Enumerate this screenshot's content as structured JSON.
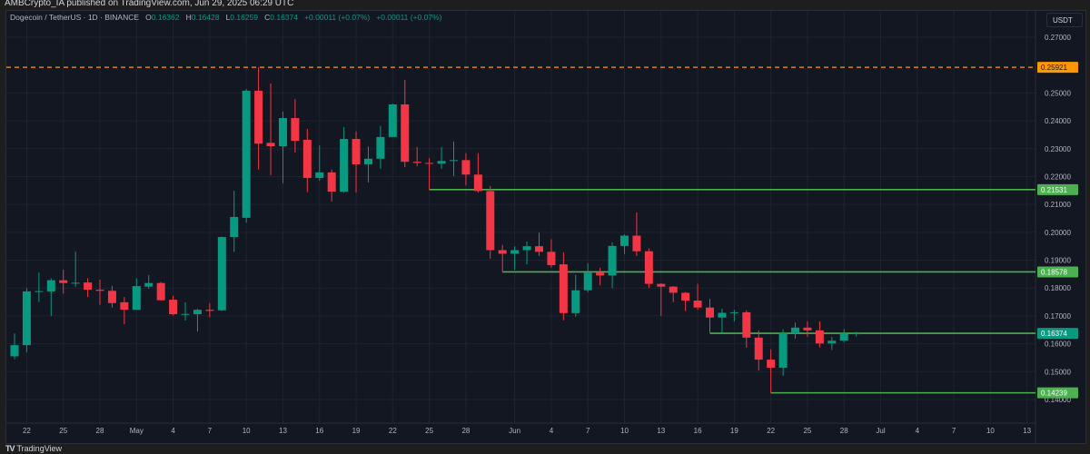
{
  "publication": {
    "text": "AMBCrypto_IA published on TradingView.com, Jun 29, 2025 06:29 UTC"
  },
  "legend": {
    "symbol": "Dogecoin / TetherUS · 1D · BINANCE",
    "open_label": "O",
    "open": "0.16362",
    "high_label": "H",
    "high": "0.16428",
    "low_label": "L",
    "low": "0.16259",
    "close_label": "C",
    "close": "0.16374",
    "change1": "+0.00011 (+0.07%)",
    "change2": "+0.00011 (+0.07%)"
  },
  "currency_button": "USDT",
  "footer": {
    "brand": "TradingView",
    "logo_icon": "tradingview-logo-icon"
  },
  "colors": {
    "up": "#089981",
    "down": "#f23645",
    "level": "#4caf50",
    "alert": "#ff9800",
    "current": "#089981"
  },
  "chart_data": {
    "type": "candlestick",
    "title": "Dogecoin / TetherUS · 1D · BINANCE",
    "ylim": [
      0.1365,
      0.2755
    ],
    "grid": true,
    "y_ticks": [
      "0.27000",
      "0.25000",
      "0.24000",
      "0.23000",
      "0.22000",
      "0.21000",
      "0.20000",
      "0.19000",
      "0.18000",
      "0.17000",
      "0.16000",
      "0.15000",
      "0.14000"
    ],
    "x_ticks": [
      {
        "date": "2025-04-22",
        "label": "22"
      },
      {
        "date": "2025-04-25",
        "label": "25"
      },
      {
        "date": "2025-04-28",
        "label": "28"
      },
      {
        "date": "2025-05-01",
        "label": "May"
      },
      {
        "date": "2025-05-04",
        "label": "4"
      },
      {
        "date": "2025-05-07",
        "label": "7"
      },
      {
        "date": "2025-05-10",
        "label": "10"
      },
      {
        "date": "2025-05-13",
        "label": "13"
      },
      {
        "date": "2025-05-16",
        "label": "16"
      },
      {
        "date": "2025-05-19",
        "label": "19"
      },
      {
        "date": "2025-05-22",
        "label": "22"
      },
      {
        "date": "2025-05-25",
        "label": "25"
      },
      {
        "date": "2025-05-28",
        "label": "28"
      },
      {
        "date": "2025-06-01",
        "label": "Jun"
      },
      {
        "date": "2025-06-04",
        "label": "4"
      },
      {
        "date": "2025-06-07",
        "label": "7"
      },
      {
        "date": "2025-06-10",
        "label": "10"
      },
      {
        "date": "2025-06-13",
        "label": "13"
      },
      {
        "date": "2025-06-16",
        "label": "16"
      },
      {
        "date": "2025-06-19",
        "label": "19"
      },
      {
        "date": "2025-06-22",
        "label": "22"
      },
      {
        "date": "2025-06-25",
        "label": "25"
      },
      {
        "date": "2025-06-28",
        "label": "28"
      },
      {
        "date": "2025-07-01",
        "label": "Jul"
      },
      {
        "date": "2025-07-04",
        "label": "4"
      },
      {
        "date": "2025-07-07",
        "label": "7"
      },
      {
        "date": "2025-07-10",
        "label": "10"
      },
      {
        "date": "2025-07-13",
        "label": "13"
      }
    ],
    "candles_fields": [
      "date",
      "open",
      "high",
      "low",
      "close"
    ],
    "candles": [
      [
        "2025-04-21",
        0.1555,
        0.1637,
        0.1545,
        0.1595
      ],
      [
        "2025-04-22",
        0.1595,
        0.18,
        0.157,
        0.1788
      ],
      [
        "2025-04-23",
        0.1786,
        0.1855,
        0.175,
        0.1789
      ],
      [
        "2025-04-24",
        0.1788,
        0.1835,
        0.17,
        0.1828
      ],
      [
        "2025-04-25",
        0.1828,
        0.1866,
        0.178,
        0.1818
      ],
      [
        "2025-04-26",
        0.1817,
        0.193,
        0.1805,
        0.1819
      ],
      [
        "2025-04-27",
        0.182,
        0.1835,
        0.1768,
        0.1794
      ],
      [
        "2025-04-28",
        0.1794,
        0.183,
        0.174,
        0.179
      ],
      [
        "2025-04-29",
        0.179,
        0.1808,
        0.173,
        0.1746
      ],
      [
        "2025-04-30",
        0.1749,
        0.1768,
        0.167,
        0.1722
      ],
      [
        "2025-05-01",
        0.1722,
        0.1835,
        0.1722,
        0.1807
      ],
      [
        "2025-05-02",
        0.1805,
        0.1847,
        0.1797,
        0.1818
      ],
      [
        "2025-05-03",
        0.1818,
        0.1822,
        0.1755,
        0.1756
      ],
      [
        "2025-05-04",
        0.1758,
        0.1772,
        0.1702,
        0.1706
      ],
      [
        "2025-05-05",
        0.1705,
        0.1749,
        0.1683,
        0.1707
      ],
      [
        "2025-05-06",
        0.1706,
        0.1725,
        0.1644,
        0.1722
      ],
      [
        "2025-05-07",
        0.1722,
        0.1746,
        0.1695,
        0.1718
      ],
      [
        "2025-05-08",
        0.172,
        0.1985,
        0.1718,
        0.1983
      ],
      [
        "2025-05-09",
        0.1983,
        0.2149,
        0.193,
        0.2055
      ],
      [
        "2025-05-10",
        0.2052,
        0.2514,
        0.2035,
        0.2508
      ],
      [
        "2025-05-11",
        0.2508,
        0.2592,
        0.2225,
        0.2318
      ],
      [
        "2025-05-12",
        0.2321,
        0.2534,
        0.2205,
        0.2309
      ],
      [
        "2025-05-13",
        0.2309,
        0.2433,
        0.2176,
        0.241
      ],
      [
        "2025-05-14",
        0.241,
        0.2478,
        0.2286,
        0.2328
      ],
      [
        "2025-05-15",
        0.2332,
        0.2371,
        0.2144,
        0.2195
      ],
      [
        "2025-05-16",
        0.2195,
        0.2312,
        0.2185,
        0.2215
      ],
      [
        "2025-05-17",
        0.2215,
        0.2225,
        0.211,
        0.2146
      ],
      [
        "2025-05-18",
        0.2146,
        0.2378,
        0.2142,
        0.2335
      ],
      [
        "2025-05-19",
        0.2335,
        0.2362,
        0.2142,
        0.2244
      ],
      [
        "2025-05-20",
        0.2244,
        0.2308,
        0.2179,
        0.2264
      ],
      [
        "2025-05-21",
        0.2264,
        0.2382,
        0.2228,
        0.2342
      ],
      [
        "2025-05-22",
        0.2342,
        0.2462,
        0.2342,
        0.2459
      ],
      [
        "2025-05-23",
        0.2459,
        0.2547,
        0.2234,
        0.2253
      ],
      [
        "2025-05-24",
        0.2253,
        0.2306,
        0.2237,
        0.2249
      ],
      [
        "2025-05-25",
        0.2249,
        0.2266,
        0.2153,
        0.2246
      ],
      [
        "2025-05-26",
        0.2246,
        0.2306,
        0.2228,
        0.2256
      ],
      [
        "2025-05-27",
        0.2257,
        0.2326,
        0.2202,
        0.2259
      ],
      [
        "2025-05-28",
        0.2259,
        0.2284,
        0.2168,
        0.2207
      ],
      [
        "2025-05-29",
        0.2207,
        0.2284,
        0.2142,
        0.2148
      ],
      [
        "2025-05-30",
        0.2148,
        0.2166,
        0.1905,
        0.1936
      ],
      [
        "2025-05-31",
        0.1936,
        0.1955,
        0.1858,
        0.1923
      ],
      [
        "2025-06-01",
        0.1923,
        0.195,
        0.1865,
        0.1936
      ],
      [
        "2025-06-02",
        0.1936,
        0.1967,
        0.1885,
        0.195
      ],
      [
        "2025-06-03",
        0.195,
        0.1999,
        0.1915,
        0.193
      ],
      [
        "2025-06-04",
        0.193,
        0.1975,
        0.1873,
        0.1882
      ],
      [
        "2025-06-05",
        0.1885,
        0.1928,
        0.1684,
        0.171
      ],
      [
        "2025-06-06",
        0.171,
        0.1847,
        0.1697,
        0.1792
      ],
      [
        "2025-06-07",
        0.1792,
        0.1889,
        0.1785,
        0.1855
      ],
      [
        "2025-06-08",
        0.1855,
        0.1873,
        0.181,
        0.1845
      ],
      [
        "2025-06-09",
        0.1845,
        0.1964,
        0.18,
        0.1951
      ],
      [
        "2025-06-10",
        0.1951,
        0.1992,
        0.1922,
        0.1988
      ],
      [
        "2025-06-11",
        0.1988,
        0.2071,
        0.1915,
        0.1932
      ],
      [
        "2025-06-12",
        0.1932,
        0.1942,
        0.18,
        0.1815
      ],
      [
        "2025-06-13",
        0.1815,
        0.1817,
        0.17,
        0.1805
      ],
      [
        "2025-06-14",
        0.1805,
        0.1807,
        0.1749,
        0.1783
      ],
      [
        "2025-06-15",
        0.1783,
        0.1786,
        0.1717,
        0.1755
      ],
      [
        "2025-06-16",
        0.1755,
        0.1815,
        0.1722,
        0.173
      ],
      [
        "2025-06-17",
        0.173,
        0.1761,
        0.164,
        0.1694
      ],
      [
        "2025-06-18",
        0.1694,
        0.1726,
        0.164,
        0.1711
      ],
      [
        "2025-06-19",
        0.1711,
        0.1722,
        0.168,
        0.1713
      ],
      [
        "2025-06-20",
        0.1713,
        0.172,
        0.1586,
        0.1622
      ],
      [
        "2025-06-21",
        0.1622,
        0.1648,
        0.1504,
        0.1543
      ],
      [
        "2025-06-22",
        0.1543,
        0.158,
        0.1424,
        0.1514
      ],
      [
        "2025-06-23",
        0.1514,
        0.1652,
        0.1485,
        0.1638
      ],
      [
        "2025-06-24",
        0.1638,
        0.1676,
        0.1618,
        0.1658
      ],
      [
        "2025-06-25",
        0.1658,
        0.168,
        0.1625,
        0.1648
      ],
      [
        "2025-06-26",
        0.1648,
        0.1681,
        0.1587,
        0.1601
      ],
      [
        "2025-06-27",
        0.1601,
        0.1625,
        0.1578,
        0.1611
      ],
      [
        "2025-06-28",
        0.1611,
        0.1652,
        0.1605,
        0.1637
      ],
      [
        "2025-06-29",
        0.16362,
        0.16428,
        0.16259,
        0.16374
      ]
    ],
    "levels": [
      {
        "price": 0.25921,
        "label": "0.25921",
        "style": "dashed",
        "color": "#ff9800",
        "from": "2025-04-21"
      },
      {
        "price": 0.21531,
        "label": "0.21531",
        "style": "solid",
        "color": "#4caf50",
        "from": "2025-05-25"
      },
      {
        "price": 0.18578,
        "label": "0.18578",
        "style": "solid",
        "color": "#4caf50",
        "from": "2025-05-31"
      },
      {
        "price": 0.16374,
        "label": "0.16374",
        "style": "solid",
        "color": "#4caf50",
        "from": "2025-06-17",
        "label_color": "#089981"
      },
      {
        "price": 0.14239,
        "label": "0.14239",
        "style": "solid",
        "color": "#4caf50",
        "from": "2025-06-22"
      }
    ]
  }
}
